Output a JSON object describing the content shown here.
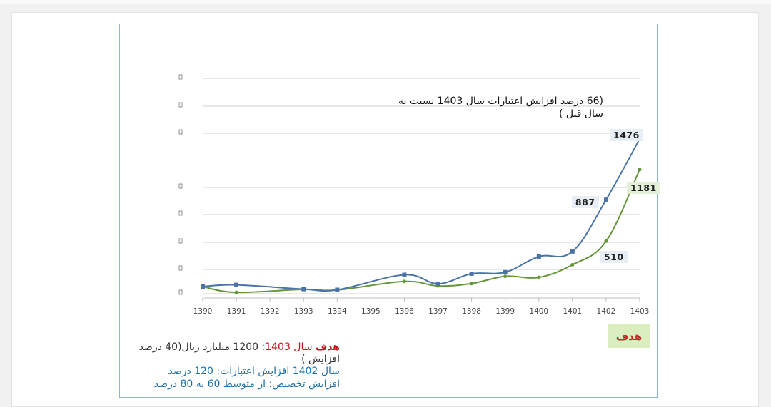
{
  "colors": {
    "series_blue": "#4a74a8",
    "series_green": "#65963a",
    "grid": "#cfcfcf",
    "goal_badge_bg": "#dbeec0",
    "goal_text": "#c0171f",
    "note_blue": "#1d6fa8"
  },
  "chart_data": {
    "type": "line",
    "x": [
      "1390",
      "1391",
      "1392",
      "1393",
      "1394",
      "1395",
      "1396",
      "1397",
      "1398",
      "1399",
      "1400",
      "1401",
      "1402",
      "1403"
    ],
    "series": [
      {
        "color": "#4a74a8",
        "marker": "square",
        "points": [
          {
            "x": 1390,
            "y": 0
          },
          {
            "x": 1391,
            "y": 8
          },
          {
            "x": 1393,
            "y": -12
          },
          {
            "x": 1394,
            "y": -15
          },
          {
            "x": 1396,
            "y": 55
          },
          {
            "x": 1397,
            "y": 13
          },
          {
            "x": 1398,
            "y": 60
          },
          {
            "x": 1399,
            "y": 67
          },
          {
            "x": 1400,
            "y": 140
          },
          {
            "x": 1401,
            "y": 164
          },
          {
            "x": 1402,
            "y": 406
          },
          {
            "x": 1403,
            "y": 691
          }
        ]
      },
      {
        "color": "#65963a",
        "marker": "diamond",
        "points": [
          {
            "x": 1390,
            "y": 0
          },
          {
            "x": 1391,
            "y": -27
          },
          {
            "x": 1393,
            "y": -13
          },
          {
            "x": 1394,
            "y": -16
          },
          {
            "x": 1396,
            "y": 24
          },
          {
            "x": 1397,
            "y": 3
          },
          {
            "x": 1398,
            "y": 14
          },
          {
            "x": 1399,
            "y": 48
          },
          {
            "x": 1400,
            "y": 43
          },
          {
            "x": 1401,
            "y": 102
          },
          {
            "x": 1402,
            "y": 212
          },
          {
            "x": 1403,
            "y": 547
          }
        ]
      }
    ],
    "data_labels": [
      {
        "series": 0,
        "x": 1403,
        "text": "1476"
      },
      {
        "series": 0,
        "x": 1402,
        "text": "887"
      },
      {
        "series": 1,
        "x": 1403,
        "text": "1181"
      },
      {
        "series": 1,
        "x": 1402,
        "text": "510"
      }
    ],
    "grid": true,
    "ylim": [
      -30,
      770
    ]
  },
  "annotation": {
    "text": "(66 درصد افزایش اعتبارات سال 1403 نسبت به سال قبل )"
  },
  "goal_badge": "هدف",
  "notes": {
    "line1_goal": "هدف",
    "line1_year": "سال 1403",
    "line1_rest": ":  1200  میلیارد ریال(40 درصد افزایش )",
    "line2": "سال 1402 افزایش اعتبارات:  120  درصد",
    "line3": "افزایش تخصیص:  از متوسط  60  به 80 درصد"
  }
}
